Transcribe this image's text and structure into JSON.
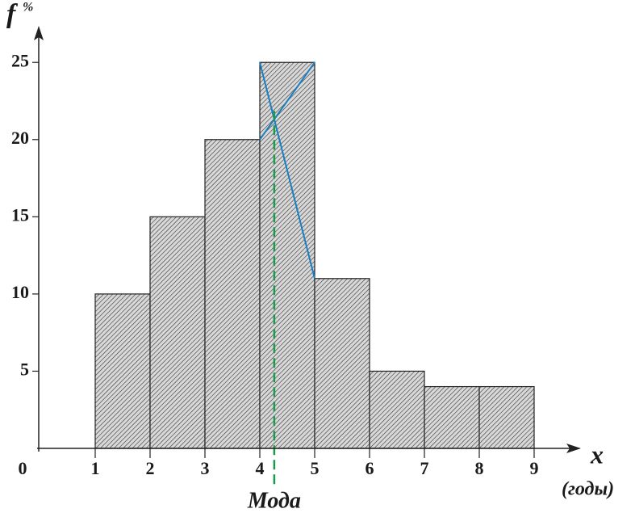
{
  "chart_data": {
    "type": "histogram",
    "bins": [
      1,
      2,
      3,
      4,
      5,
      6,
      7,
      8,
      9
    ],
    "values": [
      10,
      15,
      20,
      25,
      11,
      5,
      4,
      4
    ],
    "xlim": [
      0,
      10
    ],
    "ylim": [
      0,
      27
    ],
    "xticks": [
      0,
      1,
      2,
      3,
      4,
      5,
      6,
      7,
      8,
      9
    ],
    "yticks": [
      5,
      10,
      15,
      20,
      25
    ],
    "ylabel": "f",
    "ylabel_sup": "%",
    "xlabel": "x",
    "xlabel_unit": "(годы)",
    "annotation": "Мода",
    "color": "#d8d8d8",
    "hatch_color": "#333333",
    "construction_color": "#1a7fc1",
    "mode_color": "#1a9a4a"
  }
}
